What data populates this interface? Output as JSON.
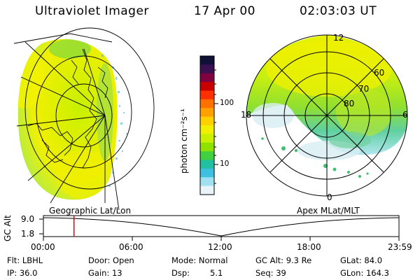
{
  "header": {
    "instrument": "Ultraviolet Imager",
    "date": "17 Apr 00",
    "time": "02:03:03 UT"
  },
  "left_map": {
    "label": "Geographic Lat/Lon"
  },
  "colorbar": {
    "unit_label": "photon cm⁻²s⁻¹",
    "ticks": [
      "100",
      "10"
    ],
    "colors": [
      "#101038",
      "#3a1050",
      "#800040",
      "#c80000",
      "#ff3000",
      "#ff7000",
      "#ffa000",
      "#ffd000",
      "#f0f000",
      "#c8f000",
      "#90e000",
      "#40d040",
      "#20c0a0",
      "#40c0e0",
      "#a0e0f0",
      "#e8f4f8"
    ]
  },
  "polar_plot": {
    "label": "Apex MLat/MLT",
    "mlt_labels": {
      "top": "12",
      "left": "18",
      "right": "6",
      "bottom": "0"
    },
    "lat_labels": [
      "60",
      "70",
      "80"
    ]
  },
  "altitude_strip": {
    "ylabel": "GC Alt",
    "ytick_top": "9.0",
    "ytick_bottom": "1.8",
    "xticks": [
      "00:00",
      "06:00",
      "12:00",
      "18:00",
      "23:59"
    ],
    "current_time_fraction": 0.086
  },
  "params": {
    "flt": "Flt: LBHL",
    "ip": "IP: 36.0",
    "door": "Door: Open",
    "gain": "Gain: 13",
    "mode": "Mode: Normal",
    "dsp_label": "Dsp:",
    "dsp_value": "5.1",
    "gc_alt": "GC Alt: 9.3 Re",
    "seq": "Seq: 39",
    "glat": "GLat: 84.0",
    "glon": "GLon: 164.3"
  }
}
